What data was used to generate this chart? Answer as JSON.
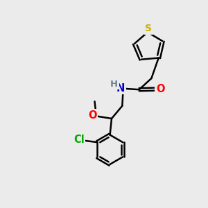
{
  "bg_color": "#ebebeb",
  "bond_color": "#000000",
  "S_color": "#c8b400",
  "N_color": "#0000cc",
  "O_color": "#ff0000",
  "Cl_color": "#00aa00",
  "H_color": "#708090",
  "bond_width": 1.8,
  "figsize": [
    3.0,
    3.0
  ],
  "dpi": 100,
  "xlim": [
    0,
    10
  ],
  "ylim": [
    0,
    10
  ]
}
